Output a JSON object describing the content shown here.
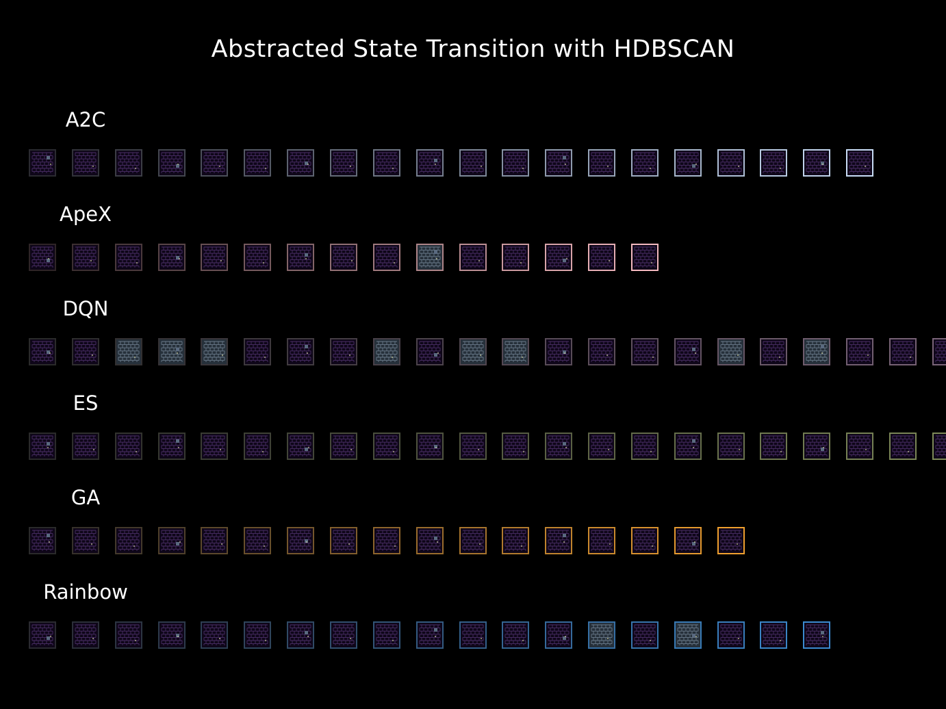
{
  "title": "Abstracted State Transition with HDBSCAN",
  "rows": [
    {
      "label": "A2C",
      "count": 20,
      "color_start": "#2a2a30",
      "color_end": "#c8dcf6",
      "variant": "lightblue"
    },
    {
      "label": "ApeX",
      "count": 15,
      "color_start": "#2e2426",
      "color_end": "#f4b9bf",
      "variant": "pink"
    },
    {
      "label": "DQN",
      "count": 22,
      "color_start": "#2a2a2a",
      "color_end": "#7a6478",
      "variant": "mauve"
    },
    {
      "label": "ES",
      "count": 22,
      "color_start": "#2a2a2a",
      "color_end": "#7e8a58",
      "variant": "olive"
    },
    {
      "label": "GA",
      "count": 17,
      "color_start": "#2a2a2a",
      "color_end": "#f0a02e",
      "variant": "orange"
    },
    {
      "label": "Rainbow",
      "count": 19,
      "color_start": "#2a2a30",
      "color_end": "#3b8ad0",
      "variant": "blue"
    }
  ],
  "highlights": {
    "ApeX": [
      9
    ],
    "DQN": [
      2,
      3,
      4,
      8,
      10,
      11,
      16,
      18
    ],
    "Rainbow": [
      13,
      15
    ]
  }
}
